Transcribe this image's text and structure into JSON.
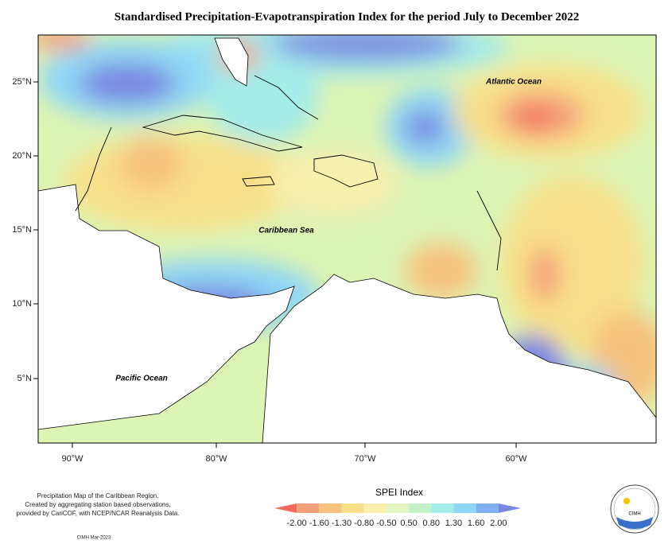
{
  "header": {
    "title": "Standardised Precipitation-Evapotranspiration Index for the period July to December 2022"
  },
  "map": {
    "lat_ticks": [
      "25°N",
      "20°N",
      "15°N",
      "10°N",
      "5°N"
    ],
    "lon_ticks": [
      "90°W",
      "80°W",
      "70°W",
      "60°W"
    ],
    "labels": [
      "Atlantic Ocean",
      "Caribbean Sea",
      "Pacific Ocean"
    ]
  },
  "footer": {
    "notes": [
      "Precipitation Map of the Caribbean Region.",
      "Created by aggregating station based observations,",
      "provided by CariCOF, with NCEP/NCAR Reanalysis Data."
    ],
    "credit": "CIMH Mar-2023",
    "logo": "CIMH"
  },
  "legend": {
    "title": "SPEI Index",
    "ticks": [
      "-2.00",
      "-1.60",
      "-1.30",
      "-0.80",
      "-0.50",
      "0.50",
      "0.80",
      "1.30",
      "1.60",
      "2.00"
    ],
    "colors": [
      "#f26a5a",
      "#f5a07a",
      "#f7c27f",
      "#f8e08a",
      "#faf0ae",
      "#e3f5c2",
      "#c2f0c8",
      "#a3ecea",
      "#8ed6f5",
      "#7fb0f0",
      "#7a86e0"
    ]
  }
}
